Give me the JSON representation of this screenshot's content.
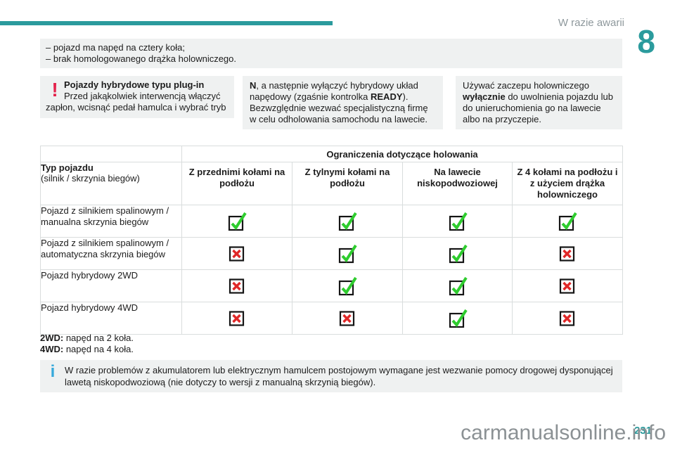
{
  "page": {
    "header_label": "W razie awarii",
    "chapter_number": "8",
    "page_number": "231",
    "watermark": "carmanualsonline.info"
  },
  "intro": {
    "items": [
      "– pojazd ma napęd na cztery koła;",
      "– brak homologowanego drążka holowniczego."
    ]
  },
  "warning_box": {
    "icon": "exclamation-icon",
    "title": "Pojazdy hybrydowe typu plug-in",
    "text": "Przed jakąkolwiek interwencją włączyć zapłon, wcisnąć pedał hamulca i wybrać tryb"
  },
  "continuation_box": {
    "bold1": "N",
    "part1": ", a następnie wyłączyć hybrydowy układ napędowy (zgaśnie kontrolka ",
    "bold2": "READY",
    "part2": "). Bezwzględnie wezwać specjalistyczną firmę w celu odholowania samochodu na lawecie."
  },
  "hook_box": {
    "part1": "Używać zaczepu holowniczego ",
    "bold": "wyłącznie",
    "part2": " do uwolnienia pojazdu lub do unieruchomienia go na lawecie albo na przyczepie."
  },
  "table": {
    "title": "Ograniczenia dotyczące holowania",
    "row_header": {
      "title": "Typ pojazdu",
      "sub": "(silnik / skrzynia biegów)"
    },
    "columns": [
      "Z przednimi kołami na podłożu",
      "Z tylnymi kołami na podłożu",
      "Na lawecie niskopodwoziowej",
      "Z 4 kołami na podłożu i z użyciem drążka holowniczego"
    ],
    "rows": [
      {
        "label": "Pojazd z silnikiem spalinowym / manualna skrzynia biegów",
        "values": [
          "allowed",
          "allowed",
          "allowed",
          "allowed"
        ]
      },
      {
        "label": "Pojazd z silnikiem spalinowym / automatyczna skrzynia biegów",
        "values": [
          "forbidden",
          "allowed",
          "allowed",
          "forbidden"
        ]
      },
      {
        "label": "Pojazd hybrydowy 2WD",
        "values": [
          "forbidden",
          "allowed",
          "allowed",
          "forbidden"
        ]
      },
      {
        "label": "Pojazd hybrydowy 4WD",
        "values": [
          "forbidden",
          "forbidden",
          "allowed",
          "forbidden"
        ]
      }
    ]
  },
  "legend": {
    "line1_bold": "2WD:",
    "line1_text": " napęd na 2 koła.",
    "line2_bold": "4WD:",
    "line2_text": " napęd na 4 koła."
  },
  "info_box": {
    "icon": "info-icon",
    "text": "W razie problemów z akumulatorem lub elektrycznym hamulcem postojowym wymagane jest wezwanie pomocy drogowej dysponującej lawetą niskopodwoziową (nie dotyczy to wersji z manualną skrzynią biegów)."
  },
  "colors": {
    "accent_teal": "#2b9b9d",
    "box_gray": "#eff1f1",
    "table_border": "#d9dddd",
    "check_green": "#2ecc2e",
    "cross_red": "#e02828",
    "warning_red": "#e4234c",
    "info_blue": "#36a9db",
    "watermark_gray": "#8b9194"
  }
}
